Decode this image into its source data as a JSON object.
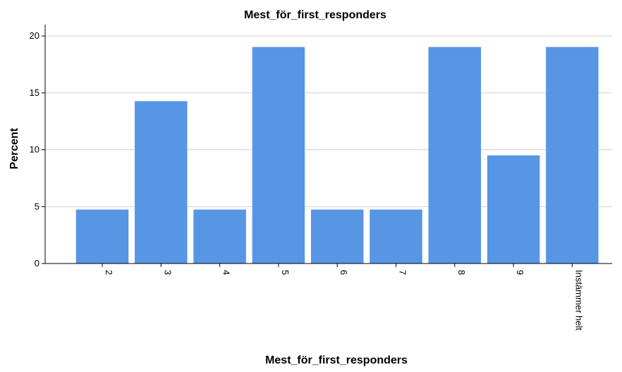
{
  "chart_data": {
    "type": "bar",
    "title": "Mest_för_first_responders",
    "xlabel": "Mest_för_first_responders",
    "ylabel": "Percent",
    "categories": [
      "2",
      "3",
      "4",
      "5",
      "6",
      "7",
      "8",
      "9",
      "Instämmer helt"
    ],
    "values": [
      4.76,
      14.29,
      4.76,
      19.05,
      4.76,
      4.76,
      19.05,
      9.52,
      19.05
    ],
    "ylim": [
      0,
      21
    ],
    "yticks": [
      0,
      5,
      10,
      15,
      20
    ],
    "grid": true,
    "bar_color": "#5796e5",
    "x_tick_rotation": 90
  }
}
